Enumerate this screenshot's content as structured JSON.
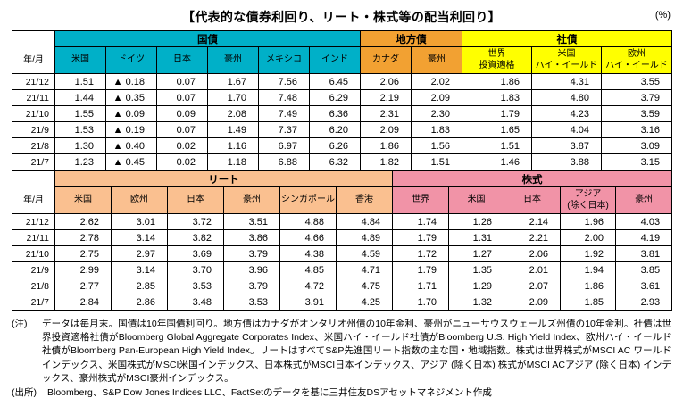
{
  "title": "【代表的な債券利回り、リート・株式等の配当利回り】",
  "unit_label": "(%)",
  "colors": {
    "government_bond": "#00b0c8",
    "municipal_bond": "#f2a132",
    "corporate_bond": "#ffff00",
    "reit": "#fac090",
    "stock": "#f193a7"
  },
  "table1": {
    "row_header": "年/月",
    "groups": [
      {
        "label": "国債",
        "span": 6,
        "color": "#00b0c8"
      },
      {
        "label": "地方債",
        "span": 2,
        "color": "#f2a132"
      },
      {
        "label": "社債",
        "span": 3,
        "color": "#ffff00"
      }
    ],
    "columns": [
      "米国",
      "ドイツ",
      "日本",
      "豪州",
      "メキシコ",
      "インド",
      "カナダ",
      "豪州",
      "世界\n投資適格",
      "米国\nハイ・イールド",
      "欧州\nハイ・イールド"
    ],
    "rows": [
      {
        "label": "21/12",
        "values": [
          "1.51",
          "▲ 0.18",
          "0.07",
          "1.67",
          "7.56",
          "6.45",
          "2.06",
          "2.02",
          "1.86",
          "4.31",
          "3.55"
        ]
      },
      {
        "label": "21/11",
        "values": [
          "1.44",
          "▲ 0.35",
          "0.07",
          "1.70",
          "7.48",
          "6.29",
          "2.19",
          "2.09",
          "1.83",
          "4.80",
          "3.79"
        ]
      },
      {
        "label": "21/10",
        "values": [
          "1.55",
          "▲ 0.09",
          "0.09",
          "2.08",
          "7.49",
          "6.36",
          "2.31",
          "2.30",
          "1.79",
          "4.23",
          "3.59"
        ]
      },
      {
        "label": "21/9",
        "values": [
          "1.53",
          "▲ 0.19",
          "0.07",
          "1.49",
          "7.37",
          "6.20",
          "2.09",
          "1.83",
          "1.65",
          "4.04",
          "3.16"
        ]
      },
      {
        "label": "21/8",
        "values": [
          "1.30",
          "▲ 0.40",
          "0.02",
          "1.16",
          "6.97",
          "6.26",
          "1.86",
          "1.56",
          "1.51",
          "3.87",
          "3.09"
        ]
      },
      {
        "label": "21/7",
        "values": [
          "1.23",
          "▲ 0.45",
          "0.02",
          "1.18",
          "6.88",
          "6.32",
          "1.82",
          "1.51",
          "1.46",
          "3.88",
          "3.15"
        ]
      }
    ]
  },
  "table2": {
    "row_header": "年/月",
    "groups": [
      {
        "label": "リート",
        "span": 6,
        "color": "#fac090"
      },
      {
        "label": "株式",
        "span": 5,
        "color": "#f193a7"
      }
    ],
    "columns": [
      "米国",
      "欧州",
      "日本",
      "豪州",
      "シンガポール",
      "香港",
      "世界",
      "米国",
      "日本",
      "アジア\n(除く日本)",
      "豪州"
    ],
    "rows": [
      {
        "label": "21/12",
        "values": [
          "2.62",
          "3.01",
          "3.72",
          "3.51",
          "4.88",
          "4.84",
          "1.74",
          "1.26",
          "2.14",
          "1.96",
          "4.03"
        ]
      },
      {
        "label": "21/11",
        "values": [
          "2.78",
          "3.14",
          "3.82",
          "3.86",
          "4.66",
          "4.89",
          "1.79",
          "1.31",
          "2.21",
          "2.00",
          "4.19"
        ]
      },
      {
        "label": "21/10",
        "values": [
          "2.75",
          "2.97",
          "3.69",
          "3.79",
          "4.38",
          "4.59",
          "1.72",
          "1.27",
          "2.06",
          "1.92",
          "3.81"
        ]
      },
      {
        "label": "21/9",
        "values": [
          "2.99",
          "3.14",
          "3.70",
          "3.96",
          "4.85",
          "4.71",
          "1.79",
          "1.35",
          "2.01",
          "1.94",
          "3.85"
        ]
      },
      {
        "label": "21/8",
        "values": [
          "2.77",
          "2.85",
          "3.53",
          "3.79",
          "4.72",
          "4.75",
          "1.71",
          "1.29",
          "2.07",
          "1.86",
          "3.61"
        ]
      },
      {
        "label": "21/7",
        "values": [
          "2.84",
          "2.86",
          "3.48",
          "3.53",
          "3.91",
          "4.25",
          "1.70",
          "1.32",
          "2.09",
          "1.85",
          "2.93"
        ]
      }
    ]
  },
  "notes": {
    "label": "(注)",
    "text": "データは毎月末。国債は10年国債利回り。地方債はカナダがオンタリオ州債の10年金利、豪州がニューサウスウェールズ州債の10年金利。社債は世界投資適格社債がBloomberg Global Aggregate Corporates Index、米国ハイ・イールド社債がBloomberg U.S. High Yield Index、欧州ハイ・イールド社債がBloomberg Pan-European High Yield Index。リートはすべてS&P先進国リート指数の主な国・地域指数。株式は世界株式がMSCI AC ワールドインデックス、米国株式がMSCI米国インデックス、日本株式がMSCI日本インデックス、アジア (除く日本) 株式がMSCI ACアジア (除く日本) インデックス、豪州株式がMSCI豪州インデックス。"
  },
  "source": {
    "label": "(出所)",
    "text": "Bloomberg、S&P Dow Jones Indices LLC、FactSetのデータを基に三井住友DSアセットマネジメント作成"
  }
}
